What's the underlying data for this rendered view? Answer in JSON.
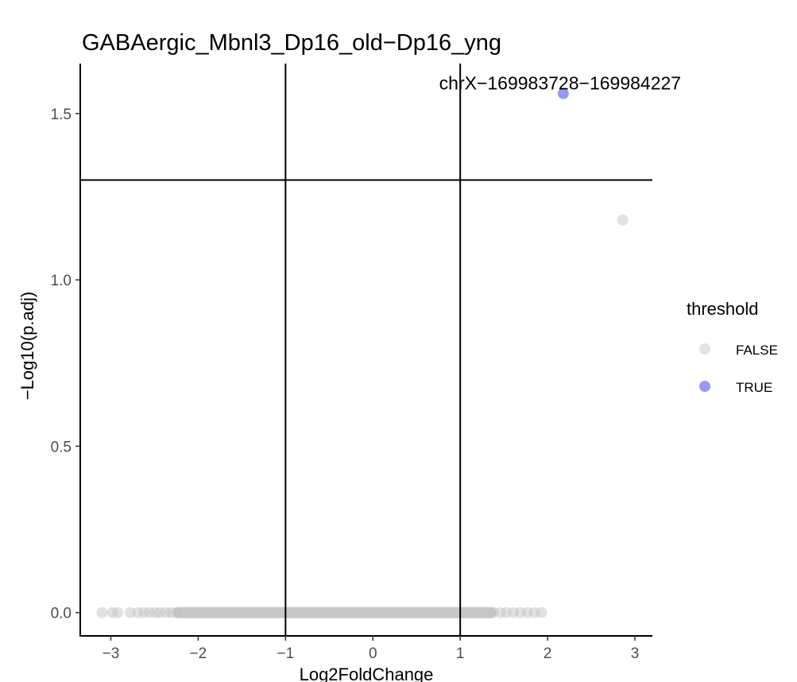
{
  "chart_data": {
    "type": "scatter",
    "title": "GABAergic_Mbnl3_Dp16_old−Dp16_yng",
    "xlabel": "Log2FoldChange",
    "ylabel": "−Log10(p.adj)",
    "xlim": [
      -3.35,
      3.2
    ],
    "ylim": [
      -0.07,
      1.65
    ],
    "x_ticks": [
      -3,
      -2,
      -1,
      0,
      1,
      2,
      3
    ],
    "x_tick_labels": [
      "−3",
      "−2",
      "−1",
      "0",
      "1",
      "2",
      "3"
    ],
    "y_ticks": [
      0.0,
      0.5,
      1.0,
      1.5
    ],
    "y_tick_labels": [
      "0.0",
      "0.5",
      "1.0",
      "1.5"
    ],
    "vlines": [
      -1,
      1
    ],
    "hline": 1.3,
    "legend": {
      "title": "threshold",
      "entries": [
        {
          "label": "FALSE",
          "color": "#c8c8c8"
        },
        {
          "label": "TRUE",
          "color": "#9999f2"
        }
      ]
    },
    "series": [
      {
        "name": "FALSE",
        "color": "#bebebe",
        "points": [
          {
            "x": 2.86,
            "y": 1.18
          },
          {
            "x": -3.1,
            "y": 0
          },
          {
            "x": -2.98,
            "y": 0
          },
          {
            "x": -2.92,
            "y": 0
          },
          {
            "x": -2.78,
            "y": 0
          },
          {
            "x": -2.69,
            "y": 0
          },
          {
            "x": -2.62,
            "y": 0
          },
          {
            "x": -2.56,
            "y": 0
          },
          {
            "x": -2.49,
            "y": 0
          },
          {
            "x": -2.44,
            "y": 0
          },
          {
            "x": -2.37,
            "y": 0
          },
          {
            "x": -2.31,
            "y": 0
          },
          {
            "x": -2.25,
            "y": 0
          },
          {
            "x": 1.38,
            "y": 0
          },
          {
            "x": 1.46,
            "y": 0
          },
          {
            "x": 1.53,
            "y": 0
          },
          {
            "x": 1.61,
            "y": 0
          },
          {
            "x": 1.69,
            "y": 0
          },
          {
            "x": 1.77,
            "y": 0
          },
          {
            "x": 1.85,
            "y": 0
          },
          {
            "x": 1.93,
            "y": 0
          }
        ],
        "dense_band": {
          "x_from": -2.22,
          "x_to": 1.35,
          "y": 0
        }
      },
      {
        "name": "TRUE",
        "color": "#9999f2",
        "points": [
          {
            "x": 2.18,
            "y": 1.56,
            "label": "chrX−169983728−169984227"
          }
        ]
      }
    ]
  }
}
